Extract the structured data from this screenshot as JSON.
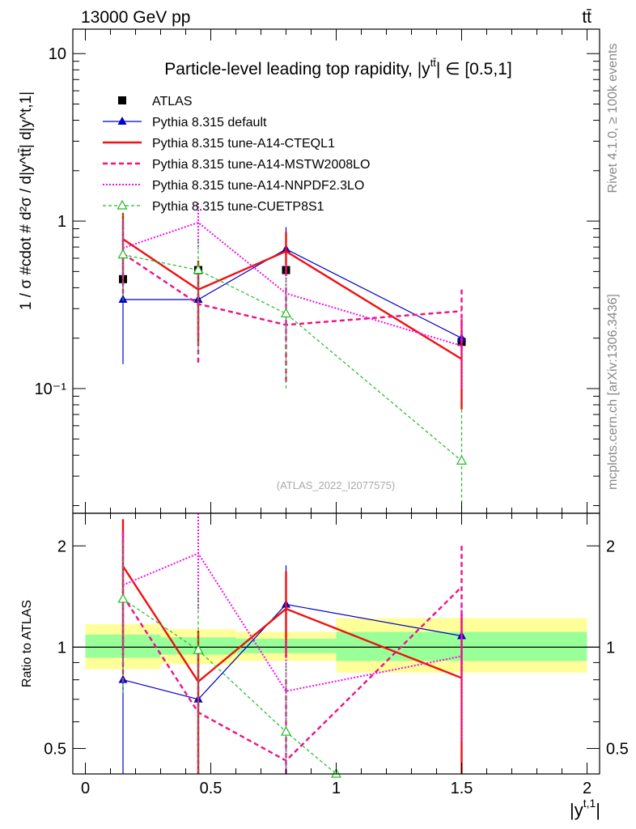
{
  "header": {
    "left": "13000 GeV pp",
    "right": "tt̄"
  },
  "side_labels": {
    "rivet": "Rivet 4.1.0, ≥ 100k events",
    "mcplots": "mcplots.cern.ch [arXiv:1306.3436]"
  },
  "chart_data": [
    {
      "type": "line",
      "title": "Particle-level leading top rapidity, |y^tt̄| ∈ [0.5,1]",
      "title_main": "Particle-level leading top rapidity, |y",
      "title_sup": "tt̄",
      "title_tail": "| ∈ [0.5,1]",
      "xlabel": "|y^{t,1}|",
      "xlabel_main": "|y",
      "xlabel_sup": "t,1",
      "xlabel_tail": "|",
      "ylabel": "1 / σ #cdot # d²σ / d|y^tt̄| d|y^t,1|",
      "ylabel_text": "1 / σ #cdot # d²σ / d|y^tt̄| d|y^t,1|",
      "yscale": "log",
      "xlim": [
        -0.05,
        2.05
      ],
      "ylim": [
        0.018,
        14
      ],
      "xticks": [
        0,
        0.5,
        1,
        1.5,
        2
      ],
      "xtick_labels": [
        "0",
        "0.5",
        "1",
        "1.5",
        "2"
      ],
      "yticks": [
        0.1,
        1,
        10
      ],
      "ytick_labels": [
        "10⁻¹",
        "1",
        "10"
      ],
      "watermark": "(ATLAS_2022_I2077575)",
      "legend_position": "top-left",
      "bins": [
        [
          0,
          0.3
        ],
        [
          0.3,
          0.6
        ],
        [
          0.6,
          1.0
        ],
        [
          1.0,
          2.0
        ]
      ],
      "data": {
        "name": "ATLAS",
        "x": [
          0.15,
          0.45,
          0.8,
          1.5
        ],
        "y": [
          0.45,
          0.51,
          0.51,
          0.19
        ]
      },
      "series": [
        {
          "name": "Pythia 8.315 default",
          "color": "#0000cc",
          "dash": "",
          "width": 1.2,
          "marker": "triangle-filled",
          "x": [
            0.15,
            0.45,
            0.8,
            1.5
          ],
          "y": [
            0.34,
            0.34,
            0.68,
            0.2
          ],
          "err_lo": [
            0.14,
            0.2,
            0.47,
            0.2
          ],
          "err_hi": [
            0.68,
            0.51,
            0.92,
            0.2
          ]
        },
        {
          "name": "Pythia 8.315 tune-A14-CTEQL1",
          "color": "#ee1111",
          "dash": "",
          "width": 2.4,
          "marker": "",
          "x": [
            0.15,
            0.45,
            0.8,
            1.5
          ],
          "y": [
            0.78,
            0.39,
            0.66,
            0.15
          ],
          "err_lo": [
            0.44,
            0.19,
            0.47,
            0.075
          ],
          "err_hi": [
            1.12,
            0.58,
            0.86,
            0.26
          ]
        },
        {
          "name": "Pythia 8.315 tune-A14-MSTW2008LO",
          "color": "#ee1188",
          "dash": "6,4",
          "width": 2.4,
          "marker": "",
          "x": [
            0.15,
            0.45,
            0.8,
            1.5
          ],
          "y": [
            0.64,
            0.32,
            0.24,
            0.29
          ],
          "err_lo": [
            0.35,
            0.14,
            0.11,
            0.16
          ],
          "err_hi": [
            0.96,
            0.52,
            0.4,
            0.39
          ]
        },
        {
          "name": "Pythia 8.315 tune-A14-NNPDF2.3LO",
          "color": "#ee11ee",
          "dash": "2,2",
          "width": 2.0,
          "marker": "",
          "x": [
            0.15,
            0.45,
            0.8,
            1.5
          ],
          "y": [
            0.69,
            0.98,
            0.37,
            0.18
          ],
          "err_lo": [
            0.4,
            0.68,
            0.2,
            0.1
          ],
          "err_hi": [
            0.98,
            1.28,
            0.55,
            0.26
          ]
        },
        {
          "name": "Pythia 8.315 tune-CUETP8S1",
          "color": "#22bb22",
          "dash": "4,3",
          "width": 1.2,
          "marker": "triangle-open",
          "x": [
            0.15,
            0.45,
            0.8,
            1.5
          ],
          "y": [
            0.63,
            0.51,
            0.28,
            0.037
          ],
          "err_lo": [
            0.33,
            0.16,
            0.1,
            0.018
          ],
          "err_hi": [
            1.12,
            0.78,
            0.46,
            0.075
          ]
        }
      ]
    },
    {
      "type": "line",
      "ylabel": "Ratio to ATLAS",
      "yscale": "log",
      "xlim": [
        -0.05,
        2.05
      ],
      "ylim": [
        0.42,
        2.5
      ],
      "yticks": [
        0.5,
        1,
        2
      ],
      "ytick_labels": [
        "0.5",
        "1",
        "2"
      ],
      "bands": [
        {
          "x0": 0,
          "x1": 0.3,
          "yellow": [
            0.86,
            1.17
          ],
          "green": [
            0.93,
            1.09
          ]
        },
        {
          "x0": 0.3,
          "x1": 0.6,
          "yellow": [
            0.89,
            1.13
          ],
          "green": [
            0.95,
            1.07
          ]
        },
        {
          "x0": 0.6,
          "x1": 1.0,
          "yellow": [
            0.91,
            1.11
          ],
          "green": [
            0.96,
            1.06
          ]
        },
        {
          "x0": 1.0,
          "x1": 2.0,
          "yellow": [
            0.84,
            1.22
          ],
          "green": [
            0.91,
            1.11
          ]
        }
      ],
      "series": [
        {
          "name": "Pythia 8.315 default",
          "color": "#0000cc",
          "dash": "",
          "width": 1.2,
          "marker": "triangle-filled",
          "x": [
            0.15,
            0.45,
            0.8,
            1.5
          ],
          "y": [
            0.8,
            0.7,
            1.34,
            1.08
          ],
          "err_lo": [
            0.42,
            0.4,
            0.95,
            1.04
          ],
          "err_hi": [
            2.4,
            1.0,
            1.75,
            1.12
          ]
        },
        {
          "name": "Pythia 8.315 tune-A14-CTEQL1",
          "color": "#ee1111",
          "dash": "",
          "width": 2.4,
          "marker": "",
          "x": [
            0.15,
            0.45,
            0.8,
            1.5
          ],
          "y": [
            1.74,
            0.79,
            1.3,
            0.81
          ],
          "err_lo": [
            0.95,
            0.42,
            0.93,
            0.4
          ],
          "err_hi": [
            2.4,
            1.12,
            1.68,
            1.25
          ]
        },
        {
          "name": "Pythia 8.315 tune-A14-MSTW2008LO",
          "color": "#ee1188",
          "dash": "6,4",
          "width": 2.4,
          "marker": "",
          "x": [
            0.15,
            0.45,
            0.8,
            1.5
          ],
          "y": [
            1.42,
            0.64,
            0.46,
            1.51
          ],
          "err_lo": [
            0.78,
            0.42,
            0.42,
            0.85
          ],
          "err_hi": [
            2.2,
            0.95,
            0.8,
            2.0
          ]
        },
        {
          "name": "Pythia 8.315 tune-A14-NNPDF2.3LO",
          "color": "#ee11ee",
          "dash": "2,2",
          "width": 2.0,
          "marker": "",
          "x": [
            0.15,
            0.45,
            0.8,
            1.5
          ],
          "y": [
            1.53,
            1.9,
            0.74,
            0.94
          ],
          "err_lo": [
            0.88,
            1.3,
            0.42,
            0.52
          ],
          "err_hi": [
            2.2,
            2.5,
            1.05,
            1.35
          ]
        },
        {
          "name": "Pythia 8.315 tune-CUETP8S1",
          "color": "#22bb22",
          "dash": "4,3",
          "width": 1.2,
          "marker": "triangle-open",
          "x": [
            0.15,
            0.45,
            0.8,
            1.0
          ],
          "y": [
            1.39,
            0.98,
            0.56,
            0.42
          ],
          "err_lo": [
            0.72,
            0.42,
            0.42,
            null
          ],
          "err_hi": [
            2.05,
            1.45,
            0.9,
            null
          ]
        }
      ]
    }
  ]
}
